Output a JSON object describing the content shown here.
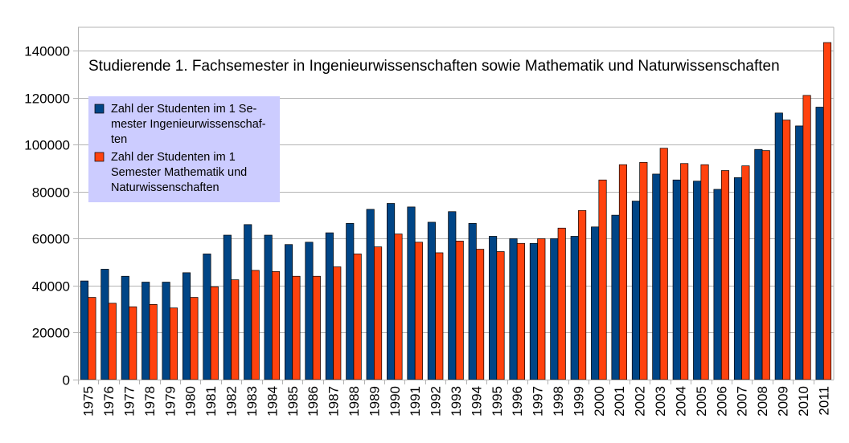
{
  "chart_data": {
    "type": "bar",
    "title": "Studierende 1. Fachsemester in Ingenieurwissenschaften sowie Mathematik und Naturwissenschaften",
    "xlabel": "",
    "ylabel": "",
    "ylim": [
      0,
      150000
    ],
    "yticks": [
      0,
      20000,
      40000,
      60000,
      80000,
      100000,
      120000,
      140000
    ],
    "grid": true,
    "legend_position": "top-left",
    "categories": [
      "1975",
      "1976",
      "1977",
      "1978",
      "1979",
      "1980",
      "1981",
      "1982",
      "1983",
      "1984",
      "1985",
      "1986",
      "1987",
      "1988",
      "1989",
      "1990",
      "1991",
      "1992",
      "1993",
      "1994",
      "1995",
      "1996",
      "1997",
      "1998",
      "1999",
      "2000",
      "2001",
      "2002",
      "2003",
      "2004",
      "2005",
      "2006",
      "2007",
      "2008",
      "2009",
      "2010",
      "2011"
    ],
    "series": [
      {
        "name": "Zahl der Studenten im 1 Semester Ingenieurwissenschaften",
        "legend_lines": [
          "Zahl der Studenten im 1 Se-",
          "mester Ingenieurwissenschaf-",
          "ten"
        ],
        "color": "#004586",
        "values": [
          42000,
          47000,
          44000,
          41500,
          41500,
          45500,
          53500,
          61500,
          66000,
          61500,
          57500,
          58500,
          62500,
          66500,
          72500,
          75000,
          73500,
          67000,
          71500,
          66500,
          61000,
          60000,
          58000,
          60000,
          61000,
          65000,
          70000,
          76000,
          87500,
          85000,
          84500,
          81000,
          86000,
          98000,
          113500,
          108000,
          116000
        ]
      },
      {
        "name": "Zahl der Studenten im 1 Semester Mathematik und Naturwissenschaften",
        "legend_lines": [
          "Zahl der Studenten im 1",
          "Semester Mathematik und",
          "Naturwissenschaften"
        ],
        "color": "#ff420e",
        "values": [
          35000,
          32500,
          31000,
          32000,
          30500,
          35000,
          39500,
          42500,
          46500,
          46000,
          44000,
          44000,
          48000,
          53500,
          56500,
          62000,
          58500,
          54000,
          59000,
          55500,
          54500,
          58000,
          60000,
          64500,
          72000,
          85000,
          91500,
          92500,
          98500,
          92000,
          91500,
          89000,
          91000,
          97500,
          110500,
          121000,
          143500
        ]
      }
    ]
  }
}
